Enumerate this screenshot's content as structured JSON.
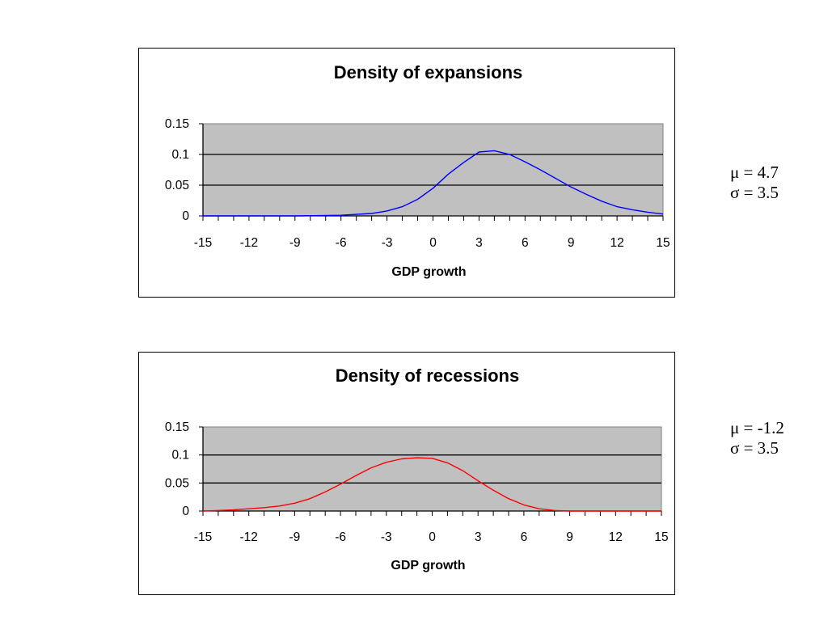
{
  "chart_data": [
    {
      "type": "line",
      "title": "Density of expansions",
      "xlabel": "GDP growth",
      "ylabel": "",
      "xlim": [
        -15,
        15
      ],
      "ylim": [
        0,
        0.15
      ],
      "x_ticks": [
        "-15",
        "-12",
        "-9",
        "-6",
        "-3",
        "0",
        "3",
        "6",
        "9",
        "12",
        "15"
      ],
      "y_ticks": [
        "0.15",
        "0.1",
        "0.05",
        "0"
      ],
      "grid": true,
      "plot_background": "#c0c0c0",
      "series": [
        {
          "color": "#0000ff",
          "x": [
            -15,
            -12,
            -9,
            -6,
            -4,
            -3,
            -2,
            -1,
            0,
            1,
            2,
            3,
            4,
            5,
            6,
            7,
            8,
            9,
            10,
            11,
            12,
            13,
            14,
            15
          ],
          "y": [
            0.0,
            0.0,
            0.0,
            0.001,
            0.004,
            0.008,
            0.015,
            0.027,
            0.045,
            0.068,
            0.087,
            0.104,
            0.106,
            0.1,
            0.088,
            0.075,
            0.061,
            0.047,
            0.035,
            0.024,
            0.015,
            0.01,
            0.006,
            0.003
          ]
        }
      ]
    },
    {
      "type": "line",
      "title": "Density of recessions",
      "xlabel": "GDP growth",
      "ylabel": "",
      "xlim": [
        -15,
        15
      ],
      "ylim": [
        0,
        0.15
      ],
      "x_ticks": [
        "-15",
        "-12",
        "-9",
        "-6",
        "-3",
        "0",
        "3",
        "6",
        "9",
        "12",
        "15"
      ],
      "y_ticks": [
        "0.15",
        "0.1",
        "0.05",
        "0"
      ],
      "grid": true,
      "plot_background": "#c0c0c0",
      "series": [
        {
          "color": "#ff0000",
          "x": [
            -15,
            -14,
            -13,
            -12,
            -11,
            -10,
            -9,
            -8,
            -7,
            -6,
            -5,
            -4,
            -3,
            -2,
            -1,
            0,
            1,
            2,
            3,
            4,
            5,
            6,
            7,
            8,
            9,
            10,
            12,
            15
          ],
          "y": [
            0.0,
            0.001,
            0.002,
            0.004,
            0.006,
            0.009,
            0.014,
            0.022,
            0.034,
            0.048,
            0.063,
            0.077,
            0.087,
            0.093,
            0.095,
            0.094,
            0.086,
            0.072,
            0.054,
            0.037,
            0.022,
            0.011,
            0.004,
            0.001,
            0.0,
            0.0,
            0.0,
            0.0
          ]
        }
      ]
    }
  ],
  "params": [
    {
      "mu": "μ = 4.7",
      "sigma": "σ = 3.5"
    },
    {
      "mu": "μ = -1.2",
      "sigma": "σ = 3.5"
    }
  ]
}
